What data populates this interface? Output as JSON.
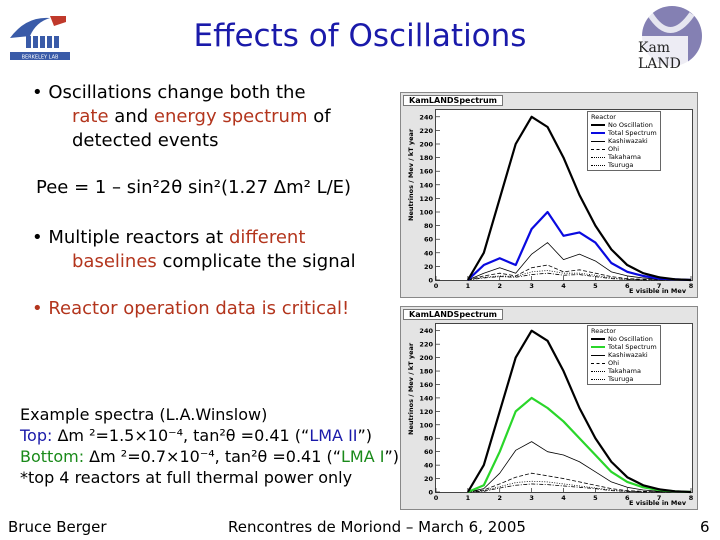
{
  "title": "Effects of Oscillations",
  "logos": {
    "left": "Berkeley Lab logo",
    "right": "KamLAND logo",
    "right_text": "Kam LAND"
  },
  "bullets": [
    {
      "parts": [
        "• Oscillations change both the",
        "rate",
        " and ",
        "energy spectrum",
        " of",
        "detected events"
      ]
    },
    {
      "parts": [
        "• Multiple reactors at ",
        "different",
        "baselines",
        " complicate the signal"
      ]
    },
    {
      "parts": [
        "• Reactor operation data is critical!"
      ]
    }
  ],
  "formula": "Pee = 1 – sin²2θ sin²(1.27 Δm² L/E)",
  "example": {
    "line1": "Example spectra (L.A.Winslow)",
    "top_label": "Top:",
    "top_text": "  Δm ²=1.5×10⁻⁴, tan²θ =0.41 (“",
    "top_model": "LMA II",
    "top_end": "”)",
    "bottom_label": "Bottom:",
    "bottom_text": " Δm ²=0.7×10⁻⁴, tan²θ =0.41 (“",
    "bottom_model": "LMA I",
    "bottom_end": "”)",
    "line4": "*top 4 reactors at full thermal power only"
  },
  "footer": {
    "left": "Bruce Berger",
    "center": "Rencontres de Moriond – March 6, 2005",
    "right": "6"
  },
  "chart_data": [
    {
      "type": "line",
      "title": "KamLANDSpectrum",
      "xlabel": "E visible in Mev",
      "ylabel": "Neutrinos / Mev / kT year",
      "xlim": [
        0,
        8
      ],
      "ylim": [
        0,
        250
      ],
      "x_ticks": [
        0,
        1,
        2,
        3,
        4,
        5,
        6,
        7,
        8
      ],
      "y_ticks": [
        0,
        20,
        40,
        60,
        80,
        100,
        120,
        140,
        160,
        180,
        200,
        220,
        240
      ],
      "legend_title": "Reactor",
      "legend_position": "top-right",
      "x": [
        1.0,
        1.5,
        2.0,
        2.5,
        3.0,
        3.5,
        4.0,
        4.5,
        5.0,
        5.5,
        6.0,
        6.5,
        7.0,
        7.5,
        8.0
      ],
      "series": [
        {
          "name": "No Oscillation",
          "color": "#000000",
          "style": "solid",
          "width": 2.2,
          "values": [
            0,
            40,
            120,
            200,
            240,
            225,
            180,
            125,
            80,
            45,
            22,
            10,
            4,
            1,
            0
          ]
        },
        {
          "name": "Total Spectrum",
          "color": "#0a0ae0",
          "style": "solid",
          "width": 2.2,
          "values": [
            0,
            22,
            32,
            22,
            75,
            100,
            65,
            70,
            55,
            25,
            12,
            6,
            2,
            1,
            0
          ]
        },
        {
          "name": "Kashiwazaki",
          "color": "#000000",
          "style": "solid",
          "width": 0.8,
          "values": [
            0,
            10,
            18,
            10,
            38,
            55,
            30,
            38,
            28,
            12,
            6,
            3,
            1,
            0,
            0
          ]
        },
        {
          "name": "Ohi",
          "color": "#000000",
          "style": "dash",
          "width": 0.8,
          "values": [
            0,
            6,
            10,
            6,
            18,
            22,
            12,
            15,
            10,
            5,
            2,
            1,
            0,
            0,
            0
          ]
        },
        {
          "name": "Takahama",
          "color": "#000000",
          "style": "dot",
          "width": 0.8,
          "values": [
            0,
            4,
            6,
            5,
            12,
            14,
            10,
            10,
            7,
            3,
            1,
            0,
            0,
            0,
            0
          ]
        },
        {
          "name": "Tsuruga",
          "color": "#000000",
          "style": "dashdot",
          "width": 0.8,
          "values": [
            0,
            3,
            5,
            4,
            8,
            10,
            7,
            8,
            5,
            2,
            1,
            0,
            0,
            0,
            0
          ]
        }
      ]
    },
    {
      "type": "line",
      "title": "KamLANDSpectrum",
      "xlabel": "E visible in Mev",
      "ylabel": "Neutrinos / Mev / kT year",
      "xlim": [
        0,
        8
      ],
      "ylim": [
        0,
        250
      ],
      "x_ticks": [
        0,
        1,
        2,
        3,
        4,
        5,
        6,
        7,
        8
      ],
      "y_ticks": [
        0,
        20,
        40,
        60,
        80,
        100,
        120,
        140,
        160,
        180,
        200,
        220,
        240
      ],
      "legend_title": "Reactor",
      "legend_position": "top-right",
      "x": [
        1.0,
        1.5,
        2.0,
        2.5,
        3.0,
        3.5,
        4.0,
        4.5,
        5.0,
        5.5,
        6.0,
        6.5,
        7.0,
        7.5,
        8.0
      ],
      "series": [
        {
          "name": "No Oscillation",
          "color": "#000000",
          "style": "solid",
          "width": 2.2,
          "values": [
            0,
            40,
            120,
            200,
            240,
            225,
            180,
            125,
            80,
            45,
            22,
            10,
            4,
            1,
            0
          ]
        },
        {
          "name": "Total Spectrum",
          "color": "#2ad62a",
          "style": "solid",
          "width": 2.2,
          "values": [
            0,
            10,
            60,
            120,
            140,
            125,
            105,
            80,
            55,
            30,
            15,
            7,
            3,
            1,
            0
          ]
        },
        {
          "name": "Kashiwazaki",
          "color": "#000000",
          "style": "solid",
          "width": 0.8,
          "values": [
            0,
            5,
            28,
            62,
            75,
            60,
            55,
            45,
            30,
            15,
            7,
            3,
            1,
            0,
            0
          ]
        },
        {
          "name": "Ohi",
          "color": "#000000",
          "style": "dash",
          "width": 0.8,
          "values": [
            0,
            3,
            12,
            22,
            28,
            24,
            20,
            15,
            10,
            5,
            2,
            1,
            0,
            0,
            0
          ]
        },
        {
          "name": "Takahama",
          "color": "#000000",
          "style": "dot",
          "width": 0.8,
          "values": [
            0,
            2,
            8,
            14,
            16,
            15,
            12,
            9,
            6,
            3,
            1,
            0,
            0,
            0,
            0
          ]
        },
        {
          "name": "Tsuruga",
          "color": "#000000",
          "style": "dashdot",
          "width": 0.8,
          "values": [
            0,
            1,
            6,
            10,
            12,
            11,
            9,
            7,
            5,
            2,
            1,
            0,
            0,
            0,
            0
          ]
        }
      ]
    }
  ]
}
